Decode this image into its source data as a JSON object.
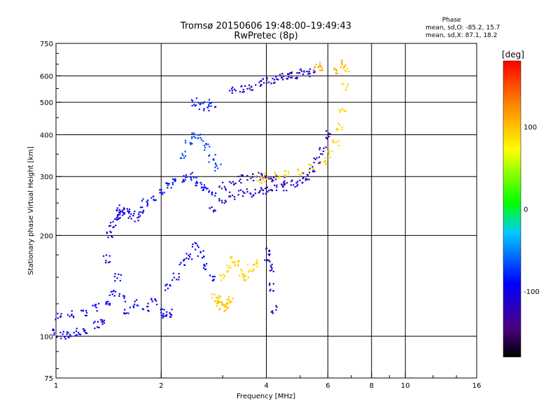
{
  "chart_data": {
    "type": "scatter",
    "title": "Tromsø 20150606 19:48:00–19:49:43",
    "subtitle": "RwPretec (8p)",
    "xlabel": "Frequency [MHz]",
    "ylabel": "Stationary phase Virtual Height [km]",
    "x_scale": "log",
    "y_scale": "log",
    "xlim": [
      1,
      16
    ],
    "ylim": [
      75,
      750
    ],
    "x_ticks": [
      1,
      2,
      4,
      6,
      8,
      10,
      16
    ],
    "y_ticks": [
      75,
      100,
      200,
      300,
      400,
      500,
      600,
      750
    ],
    "x_grid": [
      2,
      4,
      6,
      8,
      10
    ],
    "y_grid": [
      100,
      200,
      300,
      400,
      500,
      600
    ],
    "grid": true,
    "phase_info": {
      "heading": "Phase",
      "line_o": "mean, sd,O: -85.2, 15.7",
      "line_x": "mean, sd,X:  87.1, 18.2"
    },
    "colorbar": {
      "label": "[deg]",
      "ticks": [
        100,
        0,
        -100
      ],
      "range": [
        -180,
        180
      ]
    },
    "series": [
      {
        "phase": -95,
        "x": [
          1.02,
          1.1,
          1.2,
          1.3,
          1.4,
          1.45,
          1.5,
          1.55,
          1.6,
          1.7,
          1.8,
          1.9,
          2.0,
          2.05,
          2.1
        ],
        "y": [
          115,
          116,
          118,
          122,
          125,
          135,
          150,
          130,
          120,
          125,
          122,
          128,
          118,
          115,
          117
        ]
      },
      {
        "phase": -100,
        "x": [
          1.0,
          1.05,
          1.1,
          1.15,
          1.2,
          1.3,
          1.35
        ],
        "y": [
          102,
          101,
          100,
          103,
          105,
          108,
          110
        ]
      },
      {
        "phase": -105,
        "x": [
          1.4,
          1.42,
          1.45,
          1.48,
          1.5,
          1.52,
          1.55,
          1.6,
          1.65,
          1.7
        ],
        "y": [
          170,
          200,
          215,
          225,
          230,
          235,
          240,
          235,
          230,
          225
        ]
      },
      {
        "phase": -85,
        "x": [
          1.75,
          1.8,
          1.9,
          2.0,
          2.1,
          2.2,
          2.3,
          2.4,
          2.5,
          2.6,
          2.7,
          2.8
        ],
        "y": [
          240,
          250,
          260,
          270,
          280,
          290,
          295,
          300,
          290,
          280,
          275,
          270
        ]
      },
      {
        "phase": -95,
        "x": [
          2.1,
          2.2,
          2.3,
          2.4,
          2.5,
          2.6,
          2.7,
          2.8
        ],
        "y": [
          140,
          150,
          165,
          175,
          185,
          175,
          160,
          150
        ]
      },
      {
        "phase": -70,
        "x": [
          2.3,
          2.4,
          2.5,
          2.6,
          2.7,
          2.8,
          2.9
        ],
        "y": [
          350,
          380,
          400,
          390,
          370,
          340,
          320
        ]
      },
      {
        "phase": -110,
        "x": [
          2.8,
          3.0,
          3.2,
          3.4,
          3.6,
          3.8,
          4.0,
          4.2,
          4.5,
          4.8,
          5.0,
          5.2,
          5.4,
          5.6,
          5.8,
          6.0
        ],
        "y": [
          240,
          255,
          262,
          266,
          268,
          270,
          272,
          275,
          280,
          285,
          290,
          300,
          315,
          335,
          360,
          400
        ]
      },
      {
        "phase": -120,
        "x": [
          3.0,
          3.2,
          3.4,
          3.6,
          3.8,
          4.0,
          4.2,
          4.5
        ],
        "y": [
          280,
          290,
          295,
          300,
          300,
          298,
          295,
          290
        ]
      },
      {
        "phase": -110,
        "x": [
          3.2,
          3.4,
          3.6,
          3.8,
          4.0,
          4.2,
          4.4,
          4.6,
          4.8,
          5.0,
          5.2,
          5.4
        ],
        "y": [
          540,
          550,
          560,
          570,
          575,
          585,
          595,
          600,
          605,
          610,
          615,
          620
        ]
      },
      {
        "phase": -80,
        "x": [
          2.5,
          2.6,
          2.7,
          2.8
        ],
        "y": [
          500,
          490,
          485,
          495
        ]
      },
      {
        "phase": 90,
        "x": [
          3.8,
          4.0,
          4.3,
          4.6,
          5.0,
          5.4,
          5.8,
          6.1,
          6.3,
          6.5,
          6.6,
          6.7,
          6.8
        ],
        "y": [
          295,
          298,
          300,
          305,
          310,
          320,
          335,
          350,
          380,
          420,
          480,
          560,
          630
        ]
      },
      {
        "phase": 90,
        "x": [
          3.0,
          3.1,
          3.2,
          3.3,
          3.4,
          3.5,
          3.6,
          3.7
        ],
        "y": [
          150,
          160,
          170,
          165,
          155,
          150,
          160,
          165
        ]
      },
      {
        "phase": 95,
        "x": [
          2.85,
          2.9,
          2.95,
          3.0,
          3.05,
          3.1,
          3.15
        ],
        "y": [
          130,
          128,
          126,
          122,
          124,
          126,
          129
        ]
      },
      {
        "phase": 110,
        "x": [
          5.6,
          5.7,
          6.4,
          6.6
        ],
        "y": [
          630,
          640,
          620,
          650
        ]
      },
      {
        "phase": -120,
        "x": [
          4.0,
          4.05,
          4.1,
          4.15,
          4.2
        ],
        "y": [
          180,
          170,
          160,
          140,
          120
        ]
      }
    ]
  }
}
